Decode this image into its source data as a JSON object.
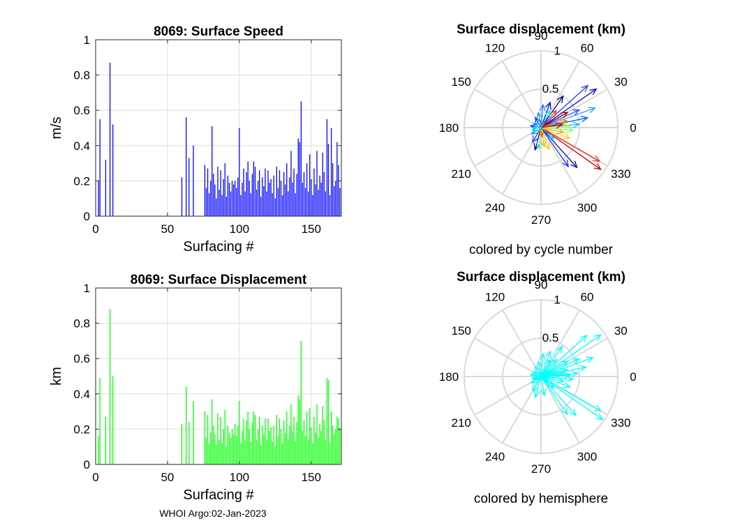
{
  "footer": "WHOI Argo:02-Jan-2023",
  "chart_data": [
    {
      "type": "bar",
      "title": "8069: Surface Speed",
      "xlabel": "Surfacing #",
      "ylabel": "m/s",
      "xlim": [
        0,
        171
      ],
      "ylim": [
        0,
        1
      ],
      "xticks": [
        0,
        50,
        100,
        150
      ],
      "yticks": [
        0,
        0.2,
        0.4,
        0.6,
        0.8,
        1
      ],
      "ytick_labels": [
        "0",
        "0.2",
        "0.4",
        "0.6",
        "0.8",
        "1"
      ],
      "grid": true,
      "color": "#0000ff",
      "x": [
        2,
        3,
        7,
        10,
        12,
        60,
        63,
        65,
        68,
        76,
        77,
        78,
        79,
        80,
        81,
        82,
        83,
        84,
        85,
        86,
        87,
        88,
        89,
        90,
        91,
        92,
        93,
        94,
        95,
        96,
        97,
        98,
        99,
        100,
        101,
        102,
        103,
        104,
        105,
        106,
        107,
        108,
        109,
        110,
        111,
        112,
        113,
        114,
        115,
        116,
        117,
        118,
        119,
        120,
        121,
        122,
        123,
        124,
        125,
        126,
        127,
        128,
        129,
        130,
        131,
        132,
        133,
        134,
        135,
        136,
        137,
        138,
        139,
        140,
        141,
        142,
        143,
        144,
        145,
        146,
        147,
        148,
        149,
        150,
        151,
        152,
        153,
        154,
        155,
        156,
        157,
        158,
        159,
        160,
        161,
        162,
        163,
        164,
        165,
        166,
        167,
        168,
        169,
        170
      ],
      "values": [
        0.2,
        0.55,
        0.32,
        0.87,
        0.52,
        0.22,
        0.56,
        0.33,
        0.4,
        0.29,
        0.16,
        0.27,
        0.13,
        0.2,
        0.51,
        0.24,
        0.18,
        0.1,
        0.28,
        0.15,
        0.26,
        0.12,
        0.21,
        0.3,
        0.11,
        0.23,
        0.19,
        0.14,
        0.2,
        0.18,
        0.2,
        0.16,
        0.22,
        0.5,
        0.12,
        0.19,
        0.27,
        0.14,
        0.25,
        0.31,
        0.2,
        0.13,
        0.24,
        0.31,
        0.28,
        0.15,
        0.2,
        0.26,
        0.11,
        0.22,
        0.17,
        0.27,
        0.14,
        0.26,
        0.19,
        0.21,
        0.13,
        0.23,
        0.1,
        0.28,
        0.16,
        0.26,
        0.2,
        0.12,
        0.25,
        0.18,
        0.3,
        0.14,
        0.22,
        0.37,
        0.19,
        0.27,
        0.13,
        0.24,
        0.44,
        0.42,
        0.65,
        0.19,
        0.25,
        0.16,
        0.3,
        0.14,
        0.35,
        0.21,
        0.12,
        0.27,
        0.18,
        0.37,
        0.15,
        0.23,
        0.19,
        0.36,
        0.25,
        0.14,
        0.55,
        0.41,
        0.12,
        0.5,
        0.3,
        0.17,
        0.2,
        0.42,
        0.29,
        0.16
      ]
    },
    {
      "type": "bar",
      "title": "8069: Surface Displacement",
      "xlabel": "Surfacing #",
      "ylabel": "km",
      "xlim": [
        0,
        171
      ],
      "ylim": [
        0,
        1
      ],
      "xticks": [
        0,
        50,
        100,
        150
      ],
      "yticks": [
        0,
        0.2,
        0.4,
        0.6,
        0.8,
        1
      ],
      "ytick_labels": [
        "0",
        "0.2",
        "0.4",
        "0.6",
        "0.8",
        "1"
      ],
      "grid": true,
      "color": "#00ff00",
      "x": [
        2,
        3,
        7,
        10,
        12,
        60,
        63,
        65,
        68,
        76,
        77,
        78,
        79,
        80,
        81,
        82,
        83,
        84,
        85,
        86,
        87,
        88,
        89,
        90,
        91,
        92,
        93,
        94,
        95,
        96,
        97,
        98,
        99,
        100,
        101,
        102,
        103,
        104,
        105,
        106,
        107,
        108,
        109,
        110,
        111,
        112,
        113,
        114,
        115,
        116,
        117,
        118,
        119,
        120,
        121,
        122,
        123,
        124,
        125,
        126,
        127,
        128,
        129,
        130,
        131,
        132,
        133,
        134,
        135,
        136,
        137,
        138,
        139,
        140,
        141,
        142,
        143,
        144,
        145,
        146,
        147,
        148,
        149,
        150,
        151,
        152,
        153,
        154,
        155,
        156,
        157,
        158,
        159,
        160,
        161,
        162,
        163,
        164,
        165,
        166,
        167,
        168,
        169,
        170
      ],
      "values": [
        0.16,
        0.49,
        0.27,
        0.88,
        0.5,
        0.23,
        0.44,
        0.24,
        0.36,
        0.3,
        0.15,
        0.28,
        0.12,
        0.18,
        0.37,
        0.22,
        0.17,
        0.11,
        0.29,
        0.14,
        0.27,
        0.12,
        0.2,
        0.31,
        0.1,
        0.22,
        0.18,
        0.15,
        0.2,
        0.17,
        0.23,
        0.16,
        0.22,
        0.36,
        0.12,
        0.19,
        0.26,
        0.14,
        0.25,
        0.3,
        0.2,
        0.13,
        0.24,
        0.3,
        0.28,
        0.14,
        0.2,
        0.27,
        0.11,
        0.22,
        0.17,
        0.26,
        0.14,
        0.26,
        0.19,
        0.21,
        0.13,
        0.22,
        0.1,
        0.28,
        0.16,
        0.26,
        0.2,
        0.12,
        0.25,
        0.18,
        0.3,
        0.14,
        0.22,
        0.34,
        0.19,
        0.27,
        0.13,
        0.24,
        0.39,
        0.37,
        0.7,
        0.19,
        0.25,
        0.16,
        0.3,
        0.14,
        0.32,
        0.21,
        0.12,
        0.27,
        0.18,
        0.34,
        0.15,
        0.23,
        0.19,
        0.33,
        0.25,
        0.14,
        0.49,
        0.48,
        0.12,
        0.3,
        0.22,
        0.17,
        0.2,
        0.27,
        0.26,
        0.2
      ]
    },
    {
      "type": "polar",
      "title": "Surface displacement (km)",
      "caption": "colored by cycle number",
      "rlim": [
        0,
        1
      ],
      "r_ticks": [
        0.5,
        1
      ],
      "r_tick_labels": [
        "0.5",
        "1"
      ],
      "angle_ticks": [
        0,
        30,
        60,
        90,
        120,
        150,
        180,
        210,
        240,
        270,
        300,
        330
      ],
      "angle_tick_labels": [
        "0",
        "30",
        "60",
        "90",
        "120",
        "150",
        "180",
        "210",
        "240",
        "270",
        "300",
        "330"
      ],
      "arrows": [
        {
          "angle": 35,
          "r": 0.88,
          "color": "#0000cc"
        },
        {
          "angle": 42,
          "r": 0.82,
          "color": "#1e3cff"
        },
        {
          "angle": 20,
          "r": 0.75,
          "color": "#28a0ff"
        },
        {
          "angle": 12,
          "r": 0.62,
          "color": "#0060ff"
        },
        {
          "angle": 25,
          "r": 0.55,
          "color": "#3050ff"
        },
        {
          "angle": 5,
          "r": 0.5,
          "color": "#00c8ff"
        },
        {
          "angle": 55,
          "r": 0.5,
          "color": "#000090"
        },
        {
          "angle": 70,
          "r": 0.35,
          "color": "#0000ff"
        },
        {
          "angle": 85,
          "r": 0.3,
          "color": "#1e78ff"
        },
        {
          "angle": 100,
          "r": 0.2,
          "color": "#00a0ff"
        },
        {
          "angle": 120,
          "r": 0.15,
          "color": "#003cff"
        },
        {
          "angle": 150,
          "r": 0.12,
          "color": "#30c0ff"
        },
        {
          "angle": 170,
          "r": 0.14,
          "color": "#0050ff"
        },
        {
          "angle": 195,
          "r": 0.12,
          "color": "#00e0ff"
        },
        {
          "angle": 215,
          "r": 0.15,
          "color": "#00a0ff"
        },
        {
          "angle": 240,
          "r": 0.22,
          "color": "#2040ff"
        },
        {
          "angle": 255,
          "r": 0.3,
          "color": "#000090"
        },
        {
          "angle": 265,
          "r": 0.28,
          "color": "#40ffc0"
        },
        {
          "angle": 280,
          "r": 0.25,
          "color": "#ffb000"
        },
        {
          "angle": 290,
          "r": 0.3,
          "color": "#ffc800"
        },
        {
          "angle": 305,
          "r": 0.62,
          "color": "#1030ff"
        },
        {
          "angle": 312,
          "r": 0.7,
          "color": "#0000c0"
        },
        {
          "angle": 325,
          "r": 0.95,
          "color": "#c00000"
        },
        {
          "angle": 330,
          "r": 0.88,
          "color": "#ff2020"
        },
        {
          "angle": 340,
          "r": 0.4,
          "color": "#ffd000"
        },
        {
          "angle": 348,
          "r": 0.3,
          "color": "#ffa000"
        },
        {
          "angle": 355,
          "r": 0.42,
          "color": "#80ff80"
        },
        {
          "angle": 3,
          "r": 0.38,
          "color": "#c0ff40"
        },
        {
          "angle": 15,
          "r": 0.35,
          "color": "#ff8000"
        },
        {
          "angle": 30,
          "r": 0.4,
          "color": "#a00000"
        },
        {
          "angle": 48,
          "r": 0.3,
          "color": "#ff4000"
        },
        {
          "angle": 62,
          "r": 0.25,
          "color": "#00ffff"
        },
        {
          "angle": 8,
          "r": 0.28,
          "color": "#e00000"
        },
        {
          "angle": 318,
          "r": 0.22,
          "color": "#00d0ff"
        },
        {
          "angle": 275,
          "r": 0.12,
          "color": "#ff6000"
        },
        {
          "angle": 200,
          "r": 0.08,
          "color": "#80ffff"
        }
      ]
    },
    {
      "type": "polar",
      "title": "Surface displacement (km)",
      "caption": "colored by hemisphere",
      "rlim": [
        0,
        1
      ],
      "r_ticks": [
        0.5,
        1
      ],
      "r_tick_labels": [
        "0.5",
        "1"
      ],
      "angle_ticks": [
        0,
        30,
        60,
        90,
        120,
        150,
        180,
        210,
        240,
        270,
        300,
        330
      ],
      "angle_tick_labels": [
        "0",
        "30",
        "60",
        "90",
        "120",
        "150",
        "180",
        "210",
        "240",
        "270",
        "300",
        "330"
      ],
      "color": "#00ffff",
      "arrows": [
        {
          "angle": 35,
          "r": 0.95
        },
        {
          "angle": 42,
          "r": 0.8
        },
        {
          "angle": 20,
          "r": 0.72
        },
        {
          "angle": 12,
          "r": 0.6
        },
        {
          "angle": 25,
          "r": 0.55
        },
        {
          "angle": 5,
          "r": 0.48
        },
        {
          "angle": 55,
          "r": 0.48
        },
        {
          "angle": 70,
          "r": 0.35
        },
        {
          "angle": 85,
          "r": 0.3
        },
        {
          "angle": 100,
          "r": 0.2
        },
        {
          "angle": 120,
          "r": 0.15
        },
        {
          "angle": 150,
          "r": 0.12
        },
        {
          "angle": 170,
          "r": 0.14
        },
        {
          "angle": 195,
          "r": 0.12
        },
        {
          "angle": 215,
          "r": 0.15
        },
        {
          "angle": 240,
          "r": 0.22
        },
        {
          "angle": 255,
          "r": 0.28
        },
        {
          "angle": 280,
          "r": 0.25
        },
        {
          "angle": 305,
          "r": 0.6
        },
        {
          "angle": 312,
          "r": 0.68
        },
        {
          "angle": 325,
          "r": 0.98
        },
        {
          "angle": 330,
          "r": 0.9
        },
        {
          "angle": 340,
          "r": 0.4
        },
        {
          "angle": 348,
          "r": 0.3
        },
        {
          "angle": 355,
          "r": 0.42
        },
        {
          "angle": 3,
          "r": 0.38
        },
        {
          "angle": 15,
          "r": 0.35
        },
        {
          "angle": 30,
          "r": 0.4
        },
        {
          "angle": 48,
          "r": 0.3
        },
        {
          "angle": 62,
          "r": 0.25
        },
        {
          "angle": 8,
          "r": 0.28
        },
        {
          "angle": 318,
          "r": 0.22
        },
        {
          "angle": 200,
          "r": 0.08
        }
      ]
    }
  ]
}
